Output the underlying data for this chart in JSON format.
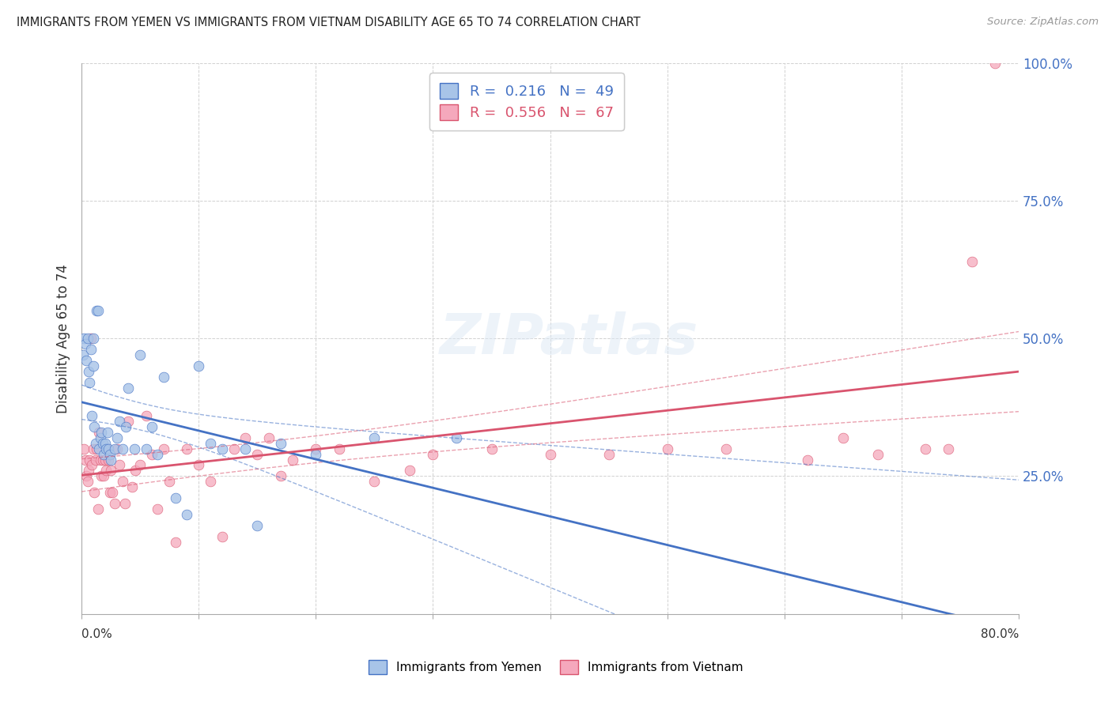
{
  "title": "IMMIGRANTS FROM YEMEN VS IMMIGRANTS FROM VIETNAM DISABILITY AGE 65 TO 74 CORRELATION CHART",
  "source": "Source: ZipAtlas.com",
  "ylabel": "Disability Age 65 to 74",
  "xlim": [
    0.0,
    80.0
  ],
  "ylim": [
    0.0,
    100.0
  ],
  "ytick_vals": [
    0,
    25,
    50,
    75,
    100
  ],
  "ytick_labels": [
    "",
    "25.0%",
    "50.0%",
    "75.0%",
    "100.0%"
  ],
  "color_yemen": "#a8c4e8",
  "color_vietnam": "#f5a8bc",
  "color_yemen_line": "#4472c4",
  "color_vietnam_line": "#d9546e",
  "r_yemen": "0.216",
  "n_yemen": "49",
  "r_vietnam": "0.556",
  "n_vietnam": "67",
  "legend_label_yemen": "Immigrants from Yemen",
  "legend_label_vietnam": "Immigrants from Vietnam",
  "watermark": "ZIPatlas",
  "yemen_x": [
    0.1,
    0.2,
    0.3,
    0.4,
    0.5,
    0.6,
    0.7,
    0.8,
    0.9,
    1.0,
    1.0,
    1.1,
    1.2,
    1.3,
    1.4,
    1.5,
    1.6,
    1.7,
    1.8,
    1.9,
    2.0,
    2.1,
    2.2,
    2.3,
    2.4,
    2.5,
    2.8,
    3.0,
    3.2,
    3.5,
    3.8,
    4.0,
    4.5,
    5.0,
    5.5,
    6.0,
    6.5,
    7.0,
    8.0,
    9.0,
    10.0,
    11.0,
    12.0,
    14.0,
    15.0,
    17.0,
    20.0,
    25.0,
    32.0
  ],
  "yemen_y": [
    47,
    50,
    49,
    46,
    50,
    44,
    42,
    48,
    36,
    45,
    50,
    34,
    31,
    55,
    55,
    30,
    32,
    33,
    31,
    29,
    31,
    30,
    33,
    30,
    29,
    28,
    30,
    32,
    35,
    30,
    34,
    41,
    30,
    47,
    30,
    34,
    29,
    43,
    21,
    18,
    45,
    31,
    30,
    30,
    16,
    31,
    29,
    32,
    32
  ],
  "vietnam_x": [
    0.2,
    0.3,
    0.4,
    0.5,
    0.6,
    0.7,
    0.8,
    0.9,
    1.0,
    1.1,
    1.2,
    1.3,
    1.4,
    1.5,
    1.6,
    1.7,
    1.8,
    1.9,
    2.0,
    2.1,
    2.2,
    2.3,
    2.4,
    2.5,
    2.6,
    2.8,
    3.0,
    3.2,
    3.5,
    3.7,
    4.0,
    4.3,
    4.6,
    5.0,
    5.5,
    6.0,
    6.5,
    7.0,
    7.5,
    8.0,
    9.0,
    10.0,
    11.0,
    12.0,
    13.0,
    14.0,
    15.0,
    16.0,
    17.0,
    18.0,
    20.0,
    22.0,
    25.0,
    28.0,
    30.0,
    35.0,
    40.0,
    45.0,
    50.0,
    55.0,
    62.0,
    65.0,
    68.0,
    72.0,
    74.0,
    76.0,
    78.0
  ],
  "vietnam_y": [
    30,
    28,
    25,
    24,
    26,
    28,
    50,
    27,
    30,
    22,
    28,
    30,
    19,
    33,
    28,
    25,
    28,
    25,
    28,
    26,
    30,
    28,
    22,
    26,
    22,
    20,
    30,
    27,
    24,
    20,
    35,
    23,
    26,
    27,
    36,
    29,
    19,
    30,
    24,
    13,
    30,
    27,
    24,
    14,
    30,
    32,
    29,
    32,
    25,
    28,
    30,
    30,
    24,
    26,
    29,
    30,
    29,
    29,
    30,
    30,
    28,
    32,
    29,
    30,
    30,
    64,
    100
  ]
}
